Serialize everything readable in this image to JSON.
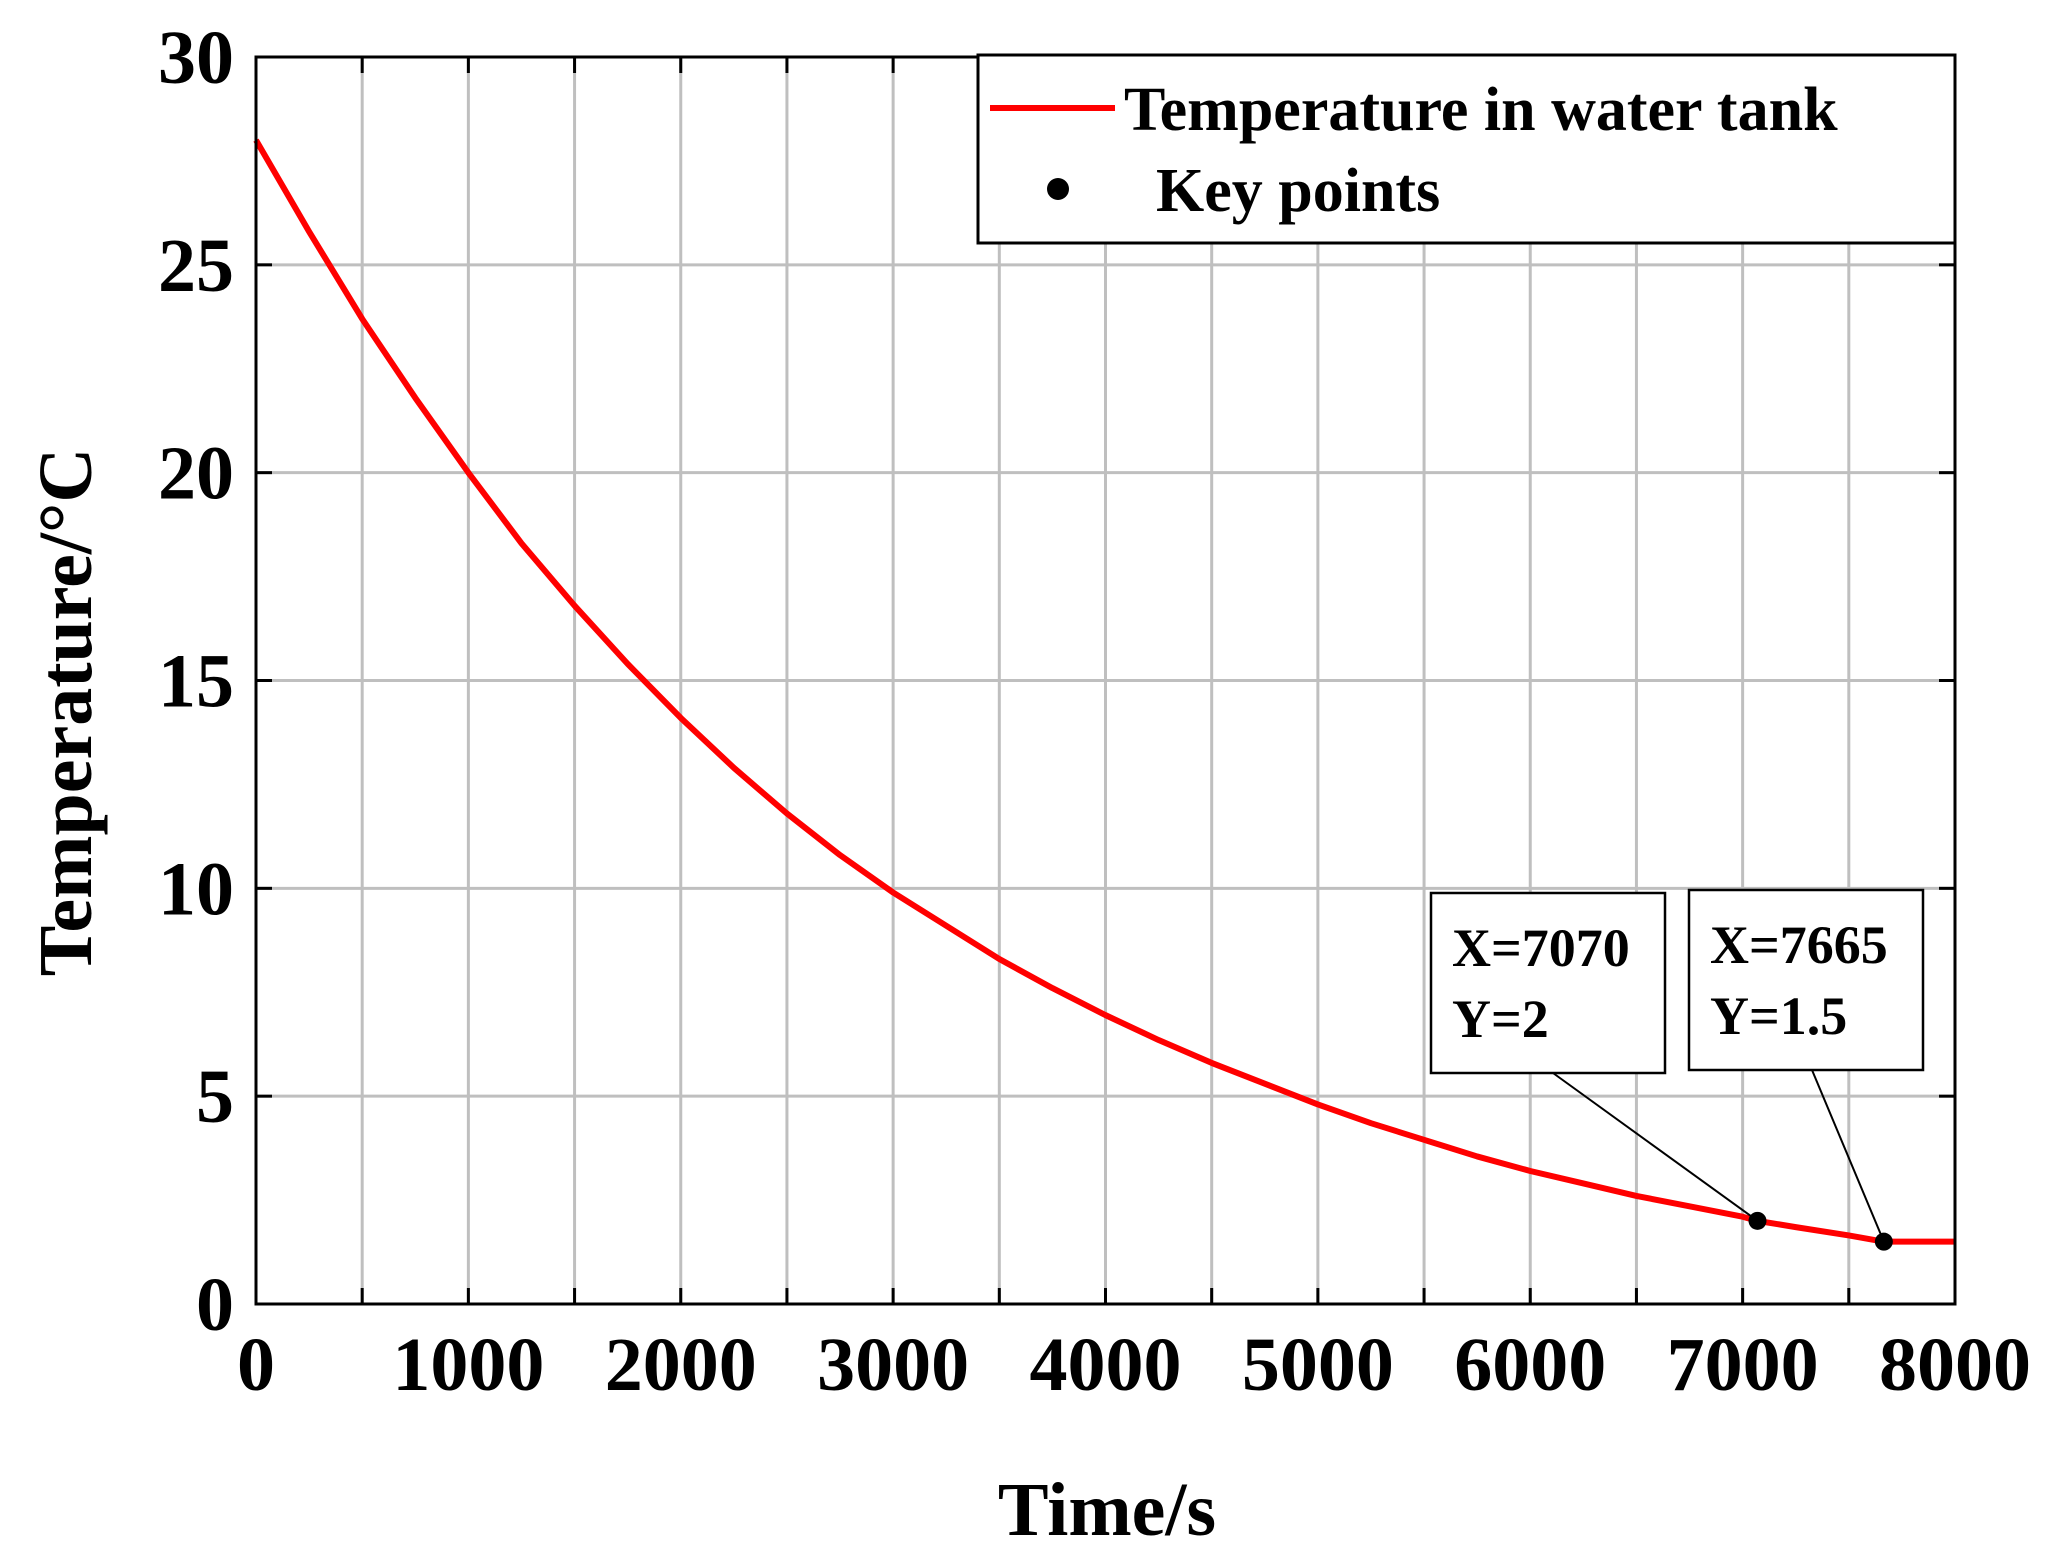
{
  "chart_data": {
    "type": "line",
    "title": "",
    "xlabel": "Time/s",
    "ylabel": "Temperature/°C",
    "xlim": [
      0,
      8000
    ],
    "ylim": [
      0,
      30
    ],
    "xticks": [
      0,
      1000,
      2000,
      3000,
      4000,
      5000,
      6000,
      7000,
      8000
    ],
    "yticks": [
      0,
      5,
      10,
      15,
      20,
      25,
      30
    ],
    "xtick_minor": 500,
    "grid": true,
    "legend_position": "top-right",
    "colors": {
      "series": "#ff0000",
      "points": "#000000",
      "grid": "#bfbfbf"
    },
    "series": [
      {
        "name": "Temperature in water tank",
        "x": [
          0,
          250,
          500,
          750,
          1000,
          1250,
          1500,
          1750,
          2000,
          2250,
          2500,
          2750,
          3000,
          3250,
          3500,
          3750,
          4000,
          4250,
          4500,
          4750,
          5000,
          5250,
          5500,
          5750,
          6000,
          6250,
          6500,
          6750,
          7000,
          7070,
          7250,
          7500,
          7665,
          7750,
          8000
        ],
        "y": [
          28.0,
          25.8,
          23.7,
          21.8,
          20.0,
          18.3,
          16.8,
          15.4,
          14.1,
          12.9,
          11.8,
          10.8,
          9.9,
          9.1,
          8.3,
          7.6,
          6.95,
          6.35,
          5.8,
          5.3,
          4.8,
          4.35,
          3.95,
          3.55,
          3.2,
          2.9,
          2.6,
          2.35,
          2.1,
          2.0,
          1.85,
          1.65,
          1.5,
          1.5,
          1.5
        ]
      },
      {
        "name": "Key points",
        "marker": "dot",
        "x": [
          7070,
          7665
        ],
        "y": [
          2.0,
          1.5
        ]
      }
    ],
    "annotations": [
      {
        "line1": "X=7070",
        "line2": "Y=2"
      },
      {
        "line1": "X=7665",
        "line2": "Y=1.5"
      }
    ]
  }
}
